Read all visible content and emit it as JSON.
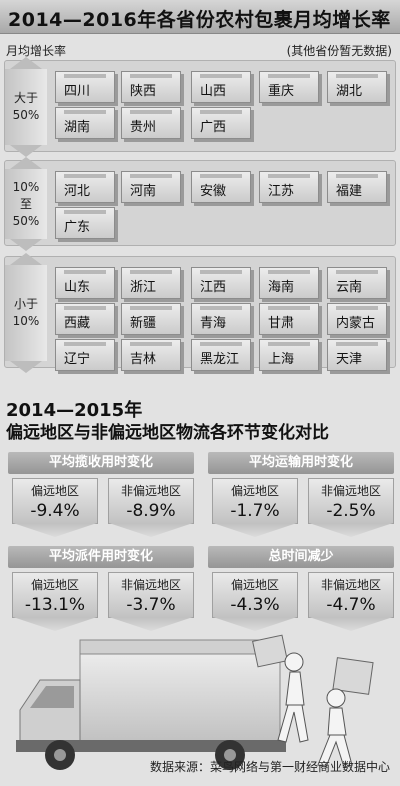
{
  "chart_data": [
    {
      "type": "table",
      "title": "2014—2016年各省份农村包裹月均增长率",
      "ylabel": "月均增长率",
      "note": "(其他省份暂无数据)",
      "groups": [
        {
          "label": "大于\n50%",
          "provinces": [
            "四川",
            "陕西",
            "山西",
            "重庆",
            "湖北",
            "湖南",
            "贵州",
            "广西"
          ]
        },
        {
          "label": "10%\n至\n50%",
          "provinces": [
            "河北",
            "河南",
            "安徽",
            "江苏",
            "福建",
            "广东"
          ]
        },
        {
          "label": "小于\n10%",
          "provinces": [
            "山东",
            "浙江",
            "江西",
            "海南",
            "云南",
            "西藏",
            "新疆",
            "青海",
            "甘肃",
            "内蒙古",
            "辽宁",
            "吉林",
            "黑龙江",
            "上海",
            "天津"
          ]
        }
      ]
    },
    {
      "type": "bar",
      "title_line1": "2014—2015年",
      "title_line2": "偏远地区与非偏远地区物流各环节变化对比",
      "categories": [
        "平均揽收用时变化",
        "平均运输用时变化",
        "平均派件用时变化",
        "总时间减少"
      ],
      "series": [
        {
          "name": "偏远地区",
          "values": [
            -9.4,
            -1.7,
            -13.1,
            -4.3
          ],
          "labels": [
            "-9.4%",
            "-1.7%",
            "-13.1%",
            "-4.3%"
          ]
        },
        {
          "name": "非偏远地区",
          "values": [
            -8.9,
            -2.5,
            -3.7,
            -4.7
          ],
          "labels": [
            "-8.9%",
            "-2.5%",
            "-3.7%",
            "-4.7%"
          ]
        }
      ]
    }
  ],
  "source": "数据来源：菜鸟网络与第一财经商业数据中心"
}
